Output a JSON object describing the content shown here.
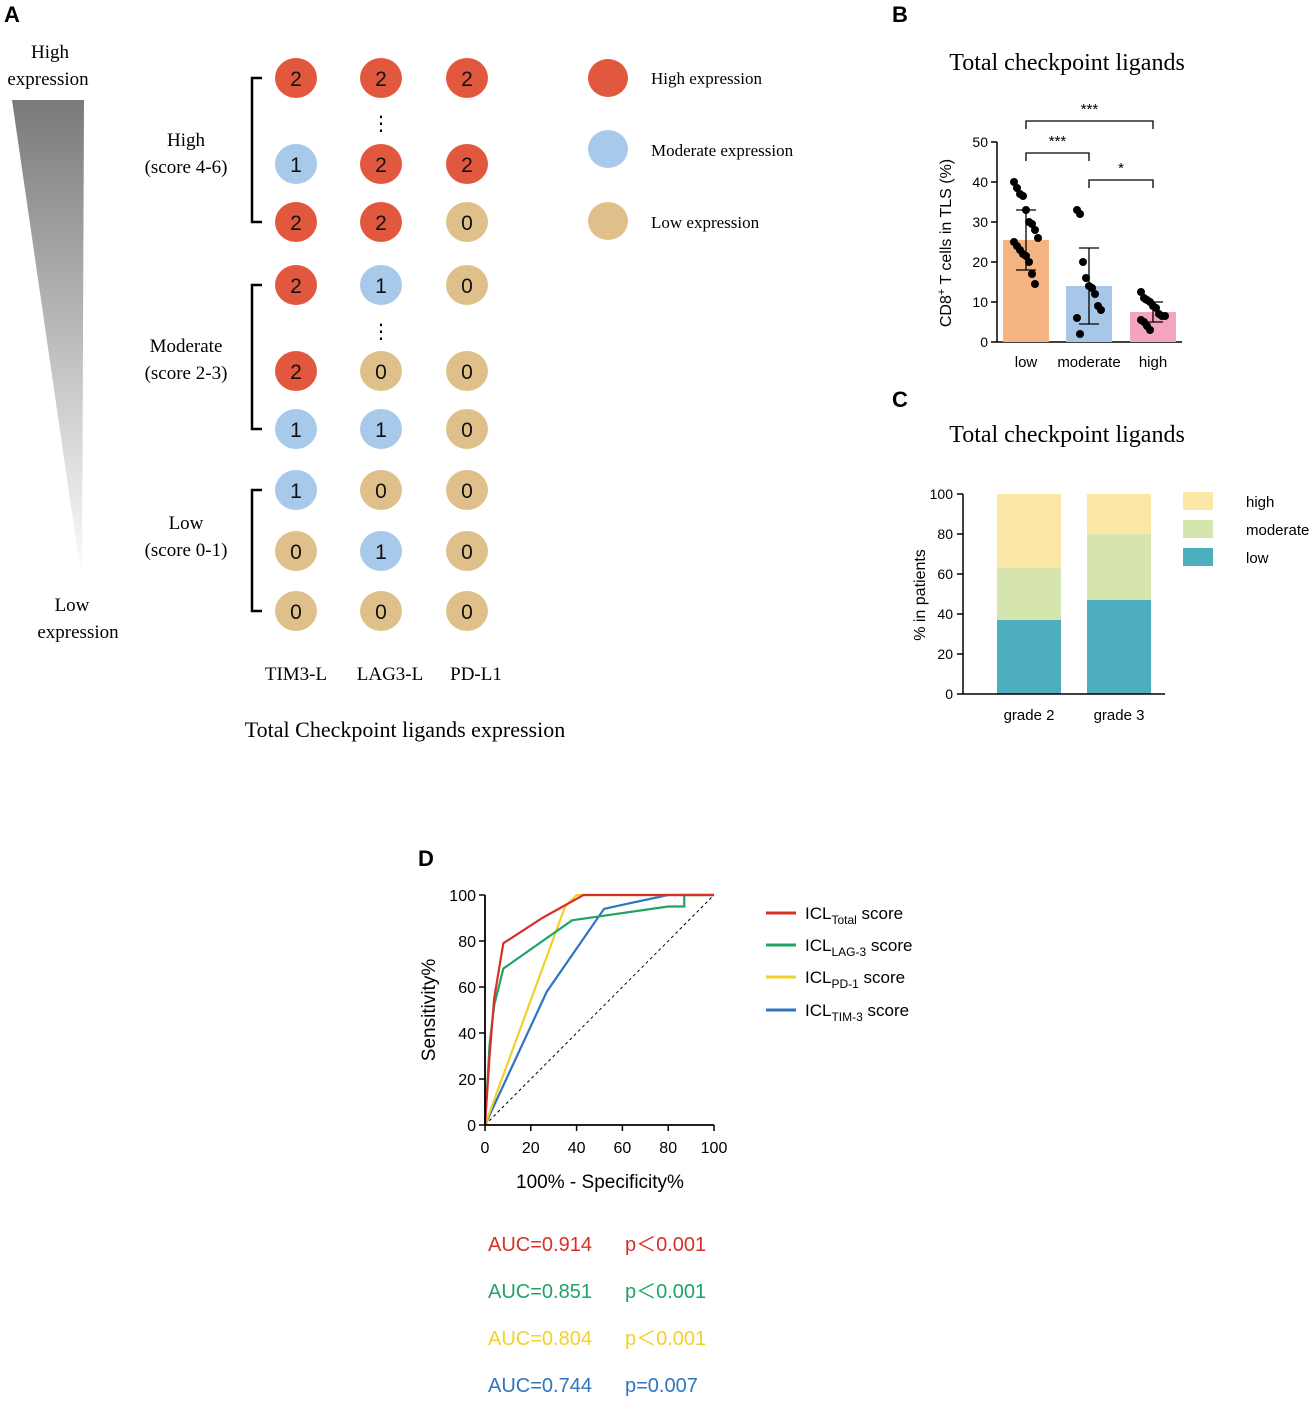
{
  "colors": {
    "high": "#e2583e",
    "moderate": "#a7c9ea",
    "low": "#dfc08a",
    "bar_low": "#f6b382",
    "bar_moderate": "#a7c7e8",
    "bar_high": "#f2a5bc",
    "stack_high": "#fbe7a6",
    "stack_moderate": "#d6e5ae",
    "stack_low": "#4daec0",
    "roc_total": "#d73027",
    "roc_lag3": "#1fa464",
    "roc_pd1": "#f2d02a",
    "roc_tim3": "#2f74c0"
  },
  "panelA": {
    "label": "A",
    "gradient_top": [
      "High",
      "expression"
    ],
    "gradient_bottom": [
      "Low",
      "expression"
    ],
    "groups": [
      {
        "name": "High",
        "range": "(score 4-6)"
      },
      {
        "name": "Moderate",
        "range": "(score 2-3)"
      },
      {
        "name": "Low",
        "range": "(score 0-1)"
      }
    ],
    "rows": [
      [
        "2",
        "2",
        "2"
      ],
      [
        "1",
        "2",
        "2"
      ],
      [
        "2",
        "2",
        "0"
      ],
      [
        "2",
        "1",
        "0"
      ],
      [
        "2",
        "0",
        "0"
      ],
      [
        "1",
        "1",
        "0"
      ],
      [
        "1",
        "0",
        "0"
      ],
      [
        "0",
        "1",
        "0"
      ],
      [
        "0",
        "0",
        "0"
      ]
    ],
    "ellipsis": "⋮",
    "columns": [
      "TIM3-L",
      "LAG3-L",
      "PD-L1"
    ],
    "legend": [
      "High expression",
      "Moderate expression",
      "Low expression"
    ],
    "caption": "Total Checkpoint ligands expression"
  },
  "panelB": {
    "label": "B",
    "chart_data": {
      "type": "bar",
      "title": "Total checkpoint ligands",
      "ylabel_main": "CD8",
      "ylabel_sup": "+",
      "ylabel_rest": " T cells in TLS (%)",
      "categories": [
        "low",
        "moderate",
        "high"
      ],
      "values": [
        25.5,
        14,
        7.5
      ],
      "errors": [
        7.5,
        9.5,
        2.5
      ],
      "ylim": [
        0,
        50
      ],
      "yticks": [
        "0",
        "10",
        "20",
        "30",
        "40",
        "50"
      ],
      "points": [
        [
          40,
          38.5,
          37,
          36.5,
          33,
          30,
          29.5,
          28,
          26,
          25,
          24,
          23,
          22,
          21.5,
          20,
          17,
          14.5
        ],
        [
          33,
          32,
          20,
          16,
          14,
          13.5,
          12,
          9,
          8,
          6,
          2
        ],
        [
          12.5,
          11,
          10.5,
          10,
          9,
          8.5,
          7,
          6.5,
          6.5,
          5.5,
          5,
          4,
          3
        ]
      ],
      "significance": [
        {
          "from": 0,
          "to": 2,
          "label": "***"
        },
        {
          "from": 0,
          "to": 1,
          "label": "***"
        },
        {
          "from": 1,
          "to": 2,
          "label": "*"
        }
      ]
    }
  },
  "panelC": {
    "label": "C",
    "chart_data": {
      "type": "bar",
      "stacked": true,
      "title": "Total checkpoint ligands",
      "ylabel": "%  in patients",
      "categories": [
        "grade 2",
        "grade 3"
      ],
      "series": [
        {
          "name": "low",
          "values": [
            37,
            47
          ]
        },
        {
          "name": "moderate",
          "values": [
            26,
            33
          ]
        },
        {
          "name": "high",
          "values": [
            37,
            20
          ]
        }
      ],
      "legend_order": [
        "high",
        "moderate",
        "low"
      ],
      "ylim": [
        0,
        100
      ],
      "yticks": [
        "0",
        "20",
        "40",
        "60",
        "80",
        "100"
      ]
    }
  },
  "panelD": {
    "label": "D",
    "chart_data": {
      "type": "line",
      "xlabel": "100% - Specificity%",
      "ylabel": "Sensitivity%",
      "xlim": [
        0,
        100
      ],
      "ylim": [
        0,
        100
      ],
      "xticks": [
        "0",
        "20",
        "40",
        "60",
        "80",
        "100"
      ],
      "yticks": [
        "0",
        "20",
        "40",
        "60",
        "80",
        "100"
      ],
      "series": [
        {
          "name": "ICL",
          "sub": "Total",
          "suffix": " score",
          "color_key": "roc_total",
          "points": [
            [
              0,
              0
            ],
            [
              2,
              30
            ],
            [
              4,
              55
            ],
            [
              8,
              79
            ],
            [
              25,
              90
            ],
            [
              43,
              100
            ],
            [
              100,
              100
            ]
          ]
        },
        {
          "name": "ICL",
          "sub": "LAG-3",
          "suffix": " score",
          "color_key": "roc_lag3",
          "points": [
            [
              0,
              0
            ],
            [
              2,
              35
            ],
            [
              4,
              52
            ],
            [
              8,
              68
            ],
            [
              38,
              89
            ],
            [
              80,
              95
            ],
            [
              87,
              95
            ],
            [
              87,
              100
            ],
            [
              100,
              100
            ]
          ]
        },
        {
          "name": "ICL",
          "sub": "PD-1",
          "suffix": " score",
          "color_key": "roc_pd1",
          "points": [
            [
              0,
              0
            ],
            [
              35,
              95
            ],
            [
              40,
              100
            ],
            [
              100,
              100
            ]
          ]
        },
        {
          "name": "ICL",
          "sub": "TIM-3",
          "suffix": " score",
          "color_key": "roc_tim3",
          "points": [
            [
              0,
              0
            ],
            [
              27,
              58
            ],
            [
              52,
              94
            ],
            [
              80,
              100
            ],
            [
              100,
              100
            ]
          ]
        }
      ],
      "auc": [
        {
          "auc": "AUC=0.914",
          "p": "p＜0.001",
          "color_key": "roc_total"
        },
        {
          "auc": "AUC=0.851",
          "p": "p＜0.001",
          "color_key": "roc_lag3"
        },
        {
          "auc": "AUC=0.804",
          "p": "p＜0.001",
          "color_key": "roc_pd1"
        },
        {
          "auc": "AUC=0.744",
          "p": "p=0.007",
          "color_key": "roc_tim3"
        }
      ]
    }
  }
}
